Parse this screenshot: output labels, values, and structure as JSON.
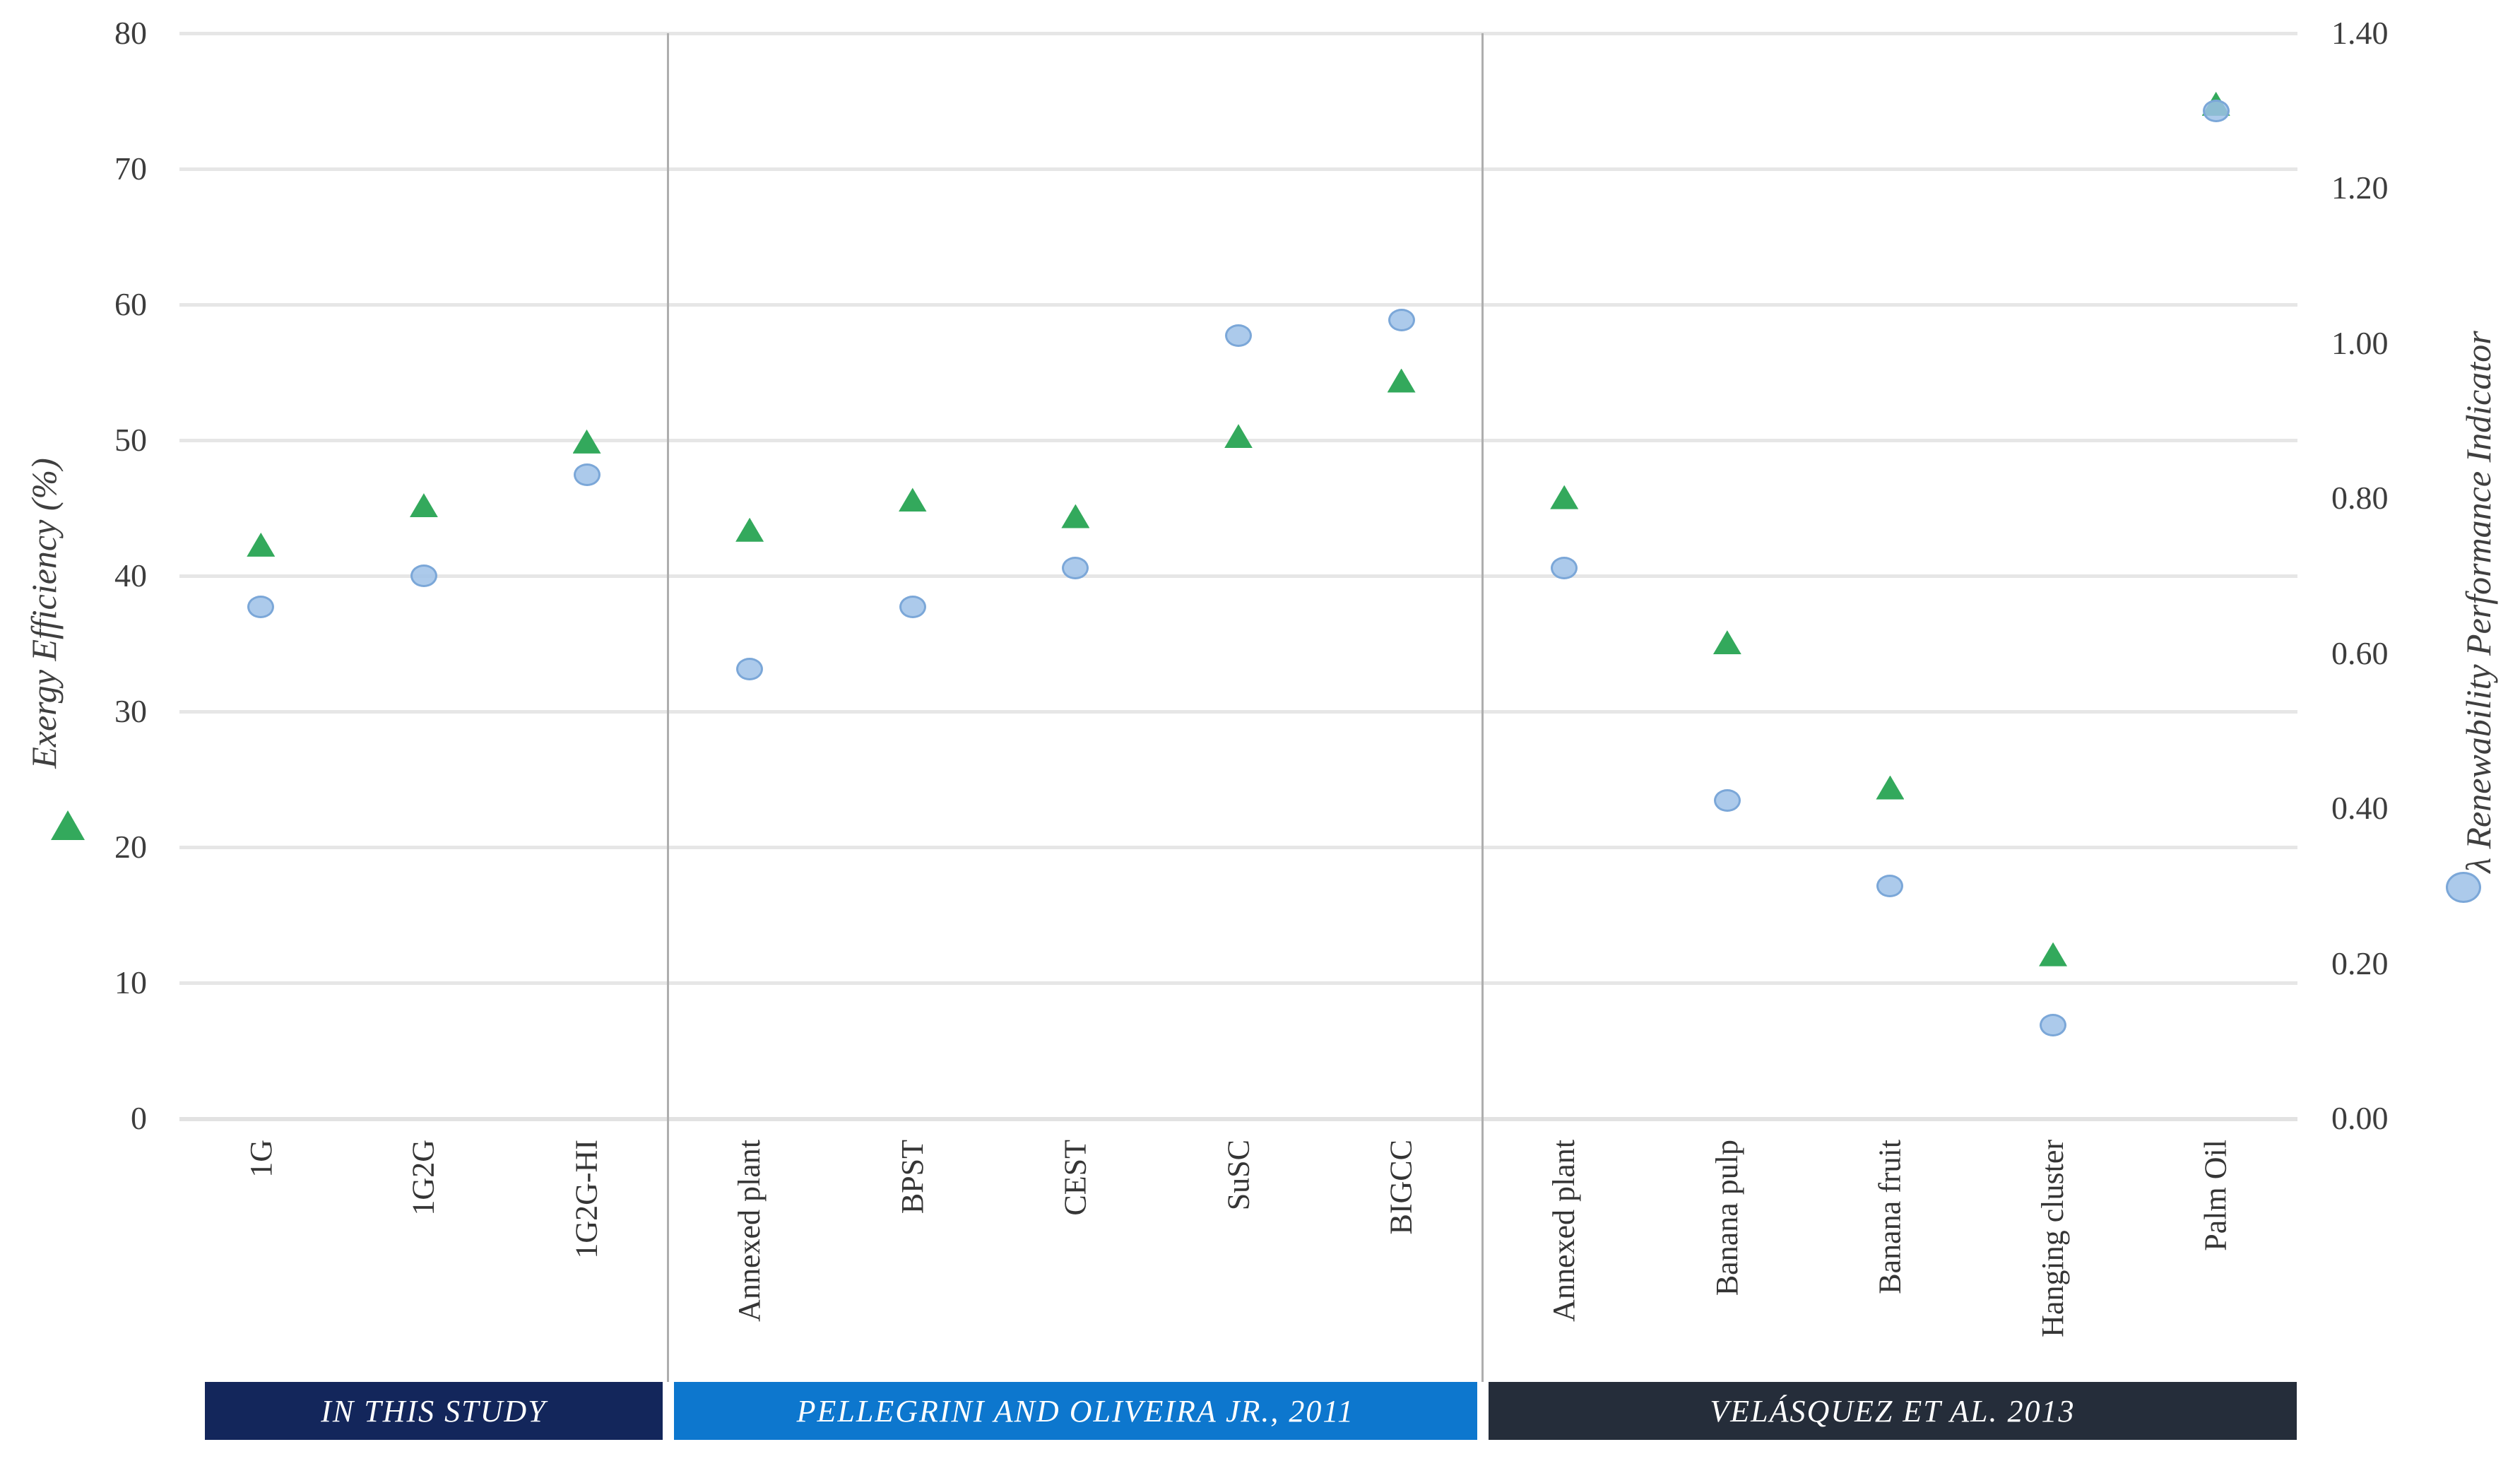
{
  "chart_data": {
    "type": "scatter",
    "title": "",
    "left_axis": {
      "label": "Exergy Efficiency (%)",
      "min": 0,
      "max": 80,
      "step": 10,
      "ticks": [
        "0",
        "10",
        "20",
        "30",
        "40",
        "50",
        "60",
        "70",
        "80"
      ]
    },
    "right_axis": {
      "label": "λ Renewability Performance Indicator",
      "min": 0.0,
      "max": 1.4,
      "step": 0.2,
      "ticks": [
        "0.00",
        "0.20",
        "0.40",
        "0.60",
        "0.80",
        "1.00",
        "1.20",
        "1.40"
      ]
    },
    "grid": "horizontal-only",
    "legend_position": "outside-margins",
    "groups": [
      {
        "label": "IN THIS STUDY",
        "color": "#13265b",
        "count": 3
      },
      {
        "label": "PELLEGRINI AND OLIVEIRA JR., 2011",
        "color": "#0d77ce",
        "count": 5
      },
      {
        "label": "VELÁSQUEZ ET AL. 2013",
        "color": "#252d3a",
        "count": 5
      }
    ],
    "categories": [
      "1G",
      "1G2G",
      "1G2G-HI",
      "Annexed plant",
      "BPST",
      "CEST",
      "SuSC",
      "BIGCC",
      "Annexed plant",
      "Banana pulp",
      "Banana fruit",
      "Hanging cluster",
      "Palm Oil"
    ],
    "series": [
      {
        "name": "Exergy Efficiency (%)",
        "marker": "triangle",
        "axis": "left",
        "color": "#33a95c",
        "values": [
          42.3,
          45.2,
          49.9,
          43.4,
          45.6,
          44.4,
          50.3,
          54.4,
          45.8,
          35.1,
          24.4,
          12.1,
          74.8
        ]
      },
      {
        "name": "λ Renewability Performance Indicator",
        "marker": "circle",
        "axis": "right",
        "color": "#9dc1e8",
        "stroke": "#7ba7d8",
        "values": [
          0.66,
          0.7,
          0.83,
          0.58,
          0.66,
          0.71,
          1.01,
          1.03,
          0.71,
          0.41,
          0.3,
          0.12,
          1.3
        ]
      }
    ],
    "colors": {
      "gridline": "#e6e6e6",
      "axis_line": "#e2e2e2",
      "group_separator": "#aeaeae",
      "tick_text": "#3d3d3d",
      "band_text": "#ffffff"
    }
  },
  "layout_note": "three source groups separated by vertical lines; colored source bands under category labels"
}
